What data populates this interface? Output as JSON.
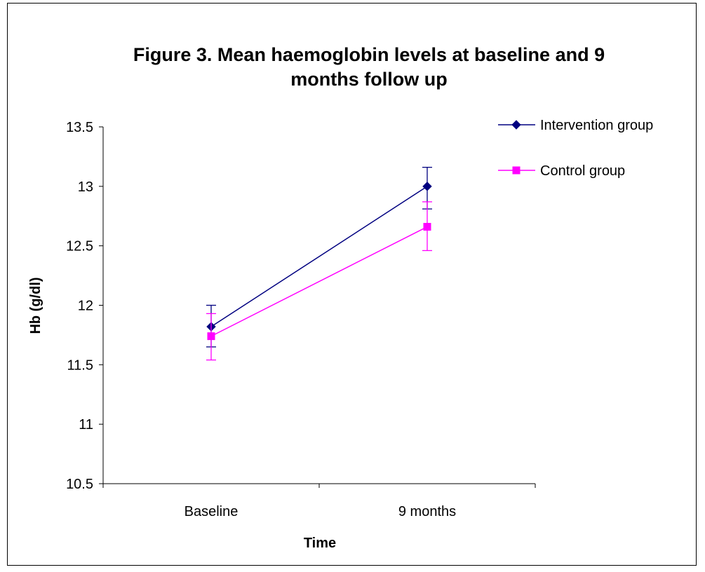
{
  "chart_data": {
    "type": "line",
    "title": "Figure 3. Mean haemoglobin levels at baseline and 9 months follow up",
    "title_lines": [
      "Figure 3. Mean haemoglobin levels at baseline and 9",
      "months follow up"
    ],
    "xlabel": "Time",
    "ylabel": "Hb (g/dl)",
    "categories": [
      "Baseline",
      "9 months"
    ],
    "ylim": [
      10.5,
      13.5
    ],
    "yticks": [
      10.5,
      11,
      11.5,
      12,
      12.5,
      13,
      13.5
    ],
    "ytick_labels": [
      "10.5",
      "11",
      "11.5",
      "12",
      "12.5",
      "13",
      "13.5"
    ],
    "grid": false,
    "legend_position": "top-right",
    "series": [
      {
        "name": "Intervention group",
        "color": "#000080",
        "marker": "diamond",
        "values": [
          11.82,
          13.0
        ],
        "err_low": [
          11.65,
          12.81
        ],
        "err_high": [
          12.0,
          13.16
        ]
      },
      {
        "name": "Control group",
        "color": "#ff00ff",
        "marker": "square",
        "values": [
          11.74,
          12.66
        ],
        "err_low": [
          11.54,
          12.46
        ],
        "err_high": [
          11.93,
          12.87
        ]
      }
    ]
  }
}
